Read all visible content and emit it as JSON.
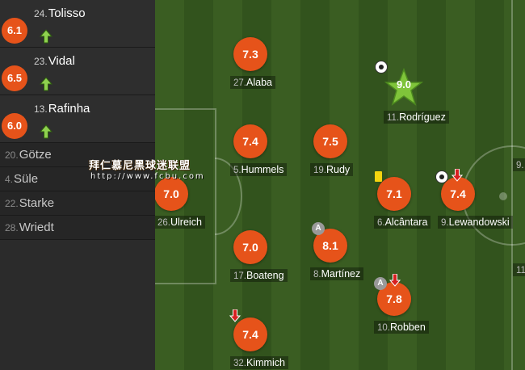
{
  "substitutes": [
    {
      "rating": "6.1",
      "number": "24.",
      "name": "Tolisso",
      "arrow": "up"
    },
    {
      "rating": "6.5",
      "number": "23.",
      "name": "Vidal",
      "arrow": "up"
    },
    {
      "rating": "6.0",
      "number": "13.",
      "name": "Rafinha",
      "arrow": "up"
    }
  ],
  "bench": [
    {
      "number": "20.",
      "name": "Götze"
    },
    {
      "number": "4.",
      "name": "Süle"
    },
    {
      "number": "22.",
      "name": "Starke"
    },
    {
      "number": "28.",
      "name": "Wriedt"
    }
  ],
  "watermark": {
    "line1": "拜仁慕尼黑球迷联盟",
    "line2": "http://www.fcbu.com"
  },
  "players": [
    {
      "id": "alaba",
      "rating": "7.3",
      "number": "27.",
      "name": "Alaba"
    },
    {
      "id": "rodriguez",
      "rating": "9.0",
      "number": "11.",
      "name": "Rodríguez",
      "star": true,
      "events": [
        "goal"
      ]
    },
    {
      "id": "hummels",
      "rating": "7.4",
      "number": "5.",
      "name": "Hummels"
    },
    {
      "id": "rudy",
      "rating": "7.5",
      "number": "19.",
      "name": "Rudy"
    },
    {
      "id": "ulreich",
      "rating": "7.0",
      "number": "26.",
      "name": "Ulreich"
    },
    {
      "id": "alcantara",
      "rating": "7.1",
      "number": "6.",
      "name": "Alcântara",
      "events": [
        "yellow-card"
      ]
    },
    {
      "id": "lewandowski",
      "rating": "7.4",
      "number": "9.",
      "name": "Lewandowski",
      "events": [
        "goal",
        "sub-off"
      ]
    },
    {
      "id": "boateng",
      "rating": "7.0",
      "number": "17.",
      "name": "Boateng"
    },
    {
      "id": "martinez",
      "rating": "8.1",
      "number": "8.",
      "name": "Martínez",
      "events": [
        "assist"
      ]
    },
    {
      "id": "robben",
      "rating": "7.8",
      "number": "10.",
      "name": "Robben",
      "events": [
        "assist",
        "sub-off"
      ]
    },
    {
      "id": "kimmich",
      "rating": "7.4",
      "number": "32.",
      "name": "Kimmich",
      "events": [
        "sub-off"
      ]
    }
  ],
  "opponents_partial": [
    {
      "id": "opp-1",
      "number": "9."
    },
    {
      "id": "opp-2",
      "number": "11"
    }
  ],
  "colors": {
    "rating_bg": "#e6531a",
    "star": "#7fc43a",
    "sub_arrow_up": "#8fd14f",
    "sub_arrow_down": "#d62020",
    "yellow_card": "#f4d40f"
  }
}
